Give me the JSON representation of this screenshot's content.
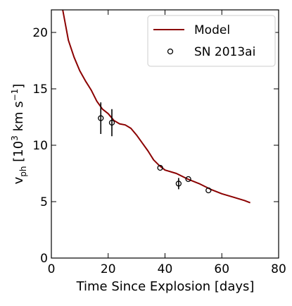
{
  "chart_data": {
    "type": "line",
    "xlabel": "Time Since Explosion [days]",
    "ylabel_main": "v",
    "ylabel_sub": "ph",
    "ylabel_units_pre": " [10",
    "ylabel_units_sup1": "3",
    "ylabel_units_mid": " km s",
    "ylabel_units_sup2": "−1",
    "ylabel_units_post": "]",
    "xlim": [
      0,
      80
    ],
    "ylim": [
      0,
      22
    ],
    "xticks": [
      0,
      20,
      40,
      60,
      80
    ],
    "yticks": [
      0,
      5,
      10,
      15,
      20
    ],
    "legend_position": "top-right",
    "grid": false,
    "series": [
      {
        "name": "Model",
        "kind": "line",
        "color": "#8b0000",
        "x": [
          4,
          6,
          8,
          10,
          12,
          14,
          16,
          18,
          20,
          22,
          24,
          26,
          28,
          30,
          32,
          34,
          36,
          38,
          40,
          44,
          48,
          52,
          56,
          60,
          64,
          68,
          70
        ],
        "y": [
          22.2,
          19.3,
          17.8,
          16.6,
          15.7,
          14.9,
          13.9,
          13.2,
          12.8,
          12.2,
          11.9,
          11.8,
          11.5,
          10.9,
          10.2,
          9.5,
          8.7,
          8.2,
          7.8,
          7.5,
          7.0,
          6.6,
          6.1,
          5.7,
          5.4,
          5.1,
          4.9
        ]
      },
      {
        "name": "SN 2013ai",
        "kind": "scatter",
        "color": "#000000",
        "x": [
          17.4,
          21.3,
          38.3,
          44.8,
          48.2,
          55.3
        ],
        "y": [
          12.4,
          12.0,
          8.0,
          6.6,
          7.0,
          6.0
        ],
        "yerr": [
          1.4,
          1.2,
          0.0,
          0.5,
          0.0,
          0.0
        ]
      }
    ]
  }
}
